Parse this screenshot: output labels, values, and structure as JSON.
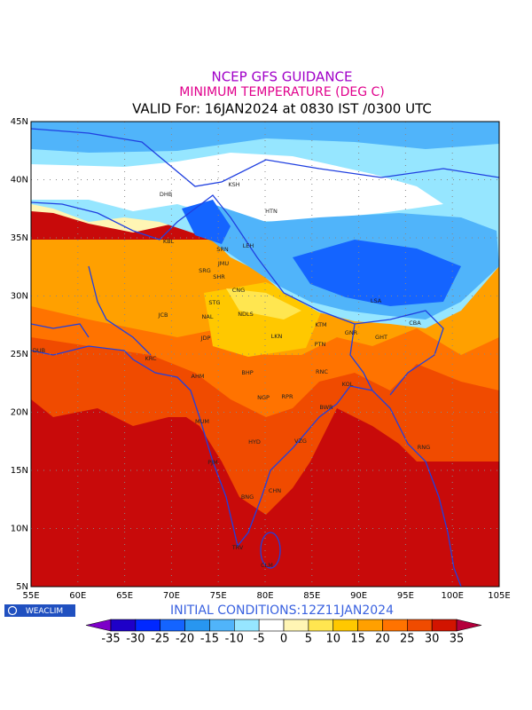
{
  "header": {
    "title": "NCEP GFS GUIDANCE",
    "subtitle": "MINIMUM TEMPERATURE (DEG C)",
    "valid": "VALID For: 16JAN2024 at 0830 IST /0300 UTC"
  },
  "map": {
    "lat_labels": [
      "45N",
      "40N",
      "35N",
      "30N",
      "25N",
      "20N",
      "15N",
      "10N",
      "5N"
    ],
    "lon_labels": [
      "55E",
      "60E",
      "65E",
      "70E",
      "75E",
      "80E",
      "85E",
      "90E",
      "95E",
      "100E",
      "105E"
    ],
    "cities": [
      "DHB",
      "KSH",
      "HTN",
      "KBL",
      "SRN",
      "LEH",
      "JMU",
      "SRG",
      "SHR",
      "CNG",
      "STG",
      "JCB",
      "NAL",
      "NDLS",
      "LSA",
      "KTM",
      "GNR",
      "CBA",
      "JDP",
      "LKN",
      "GHT",
      "PTN",
      "KRC",
      "DUB",
      "AHM",
      "BHP",
      "RNC",
      "KOL",
      "NGP",
      "RPR",
      "BWR",
      "MUM",
      "HYD",
      "VZG",
      "RNG",
      "PJM",
      "BNG",
      "CHN",
      "TRV",
      "CLM"
    ]
  },
  "footer": {
    "logo": "WEACLIM",
    "initial_conditions": "INITIAL CONDITIONS:12Z11JAN2024"
  },
  "colorbar": {
    "ticks": [
      -35,
      -30,
      -25,
      -20,
      -15,
      -10,
      -5,
      0,
      5,
      10,
      15,
      20,
      25,
      30,
      35
    ],
    "colors": [
      "#7d00c8",
      "#1e00c8",
      "#0028ff",
      "#1464ff",
      "#2896f0",
      "#50b4fa",
      "#96e6ff",
      "#ffffff",
      "#fff5b4",
      "#ffe650",
      "#ffc800",
      "#ffa000",
      "#ff7300",
      "#f04b00",
      "#d21400",
      "#b4003c"
    ]
  }
}
